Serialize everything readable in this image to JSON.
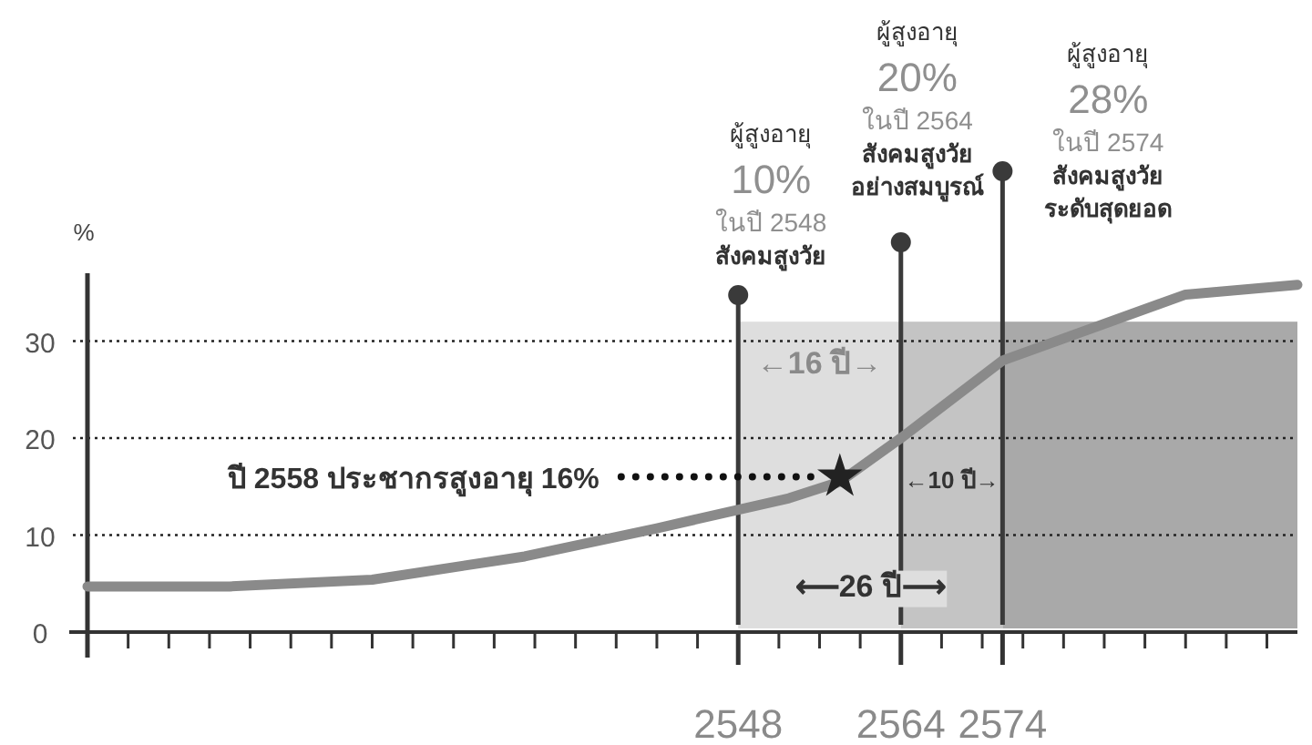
{
  "chart_data": {
    "type": "line",
    "ylabel": "%",
    "xlim": [
      2484,
      2603
    ],
    "ylim": [
      0,
      37
    ],
    "yticks": [
      0,
      10,
      20,
      30
    ],
    "grid": "y",
    "xticks": [
      {
        "value": 2484,
        "label": null
      },
      {
        "value": 2488,
        "label": null
      },
      {
        "value": 2492,
        "label": null
      },
      {
        "value": 2496,
        "label": null
      },
      {
        "value": 2500,
        "label": null
      },
      {
        "value": 2504,
        "label": null
      },
      {
        "value": 2508,
        "label": null
      },
      {
        "value": 2512,
        "label": null
      },
      {
        "value": 2516,
        "label": null
      },
      {
        "value": 2520,
        "label": null
      },
      {
        "value": 2524,
        "label": null
      },
      {
        "value": 2528,
        "label": null
      },
      {
        "value": 2532,
        "label": null
      },
      {
        "value": 2536,
        "label": null
      },
      {
        "value": 2540,
        "label": null
      },
      {
        "value": 2544,
        "label": null
      },
      2548,
      {
        "value": 2552,
        "label": null
      },
      {
        "value": 2556,
        "label": null
      },
      {
        "value": 2560,
        "label": null
      },
      2564,
      {
        "value": 2568,
        "label": null
      },
      {
        "value": 2572,
        "label": null
      },
      2574,
      {
        "value": 2576,
        "label": null
      },
      {
        "value": 2580,
        "label": null
      },
      {
        "value": 2584,
        "label": null
      },
      {
        "value": 2588,
        "label": null
      },
      {
        "value": 2592,
        "label": null
      },
      {
        "value": 2596,
        "label": null
      },
      {
        "value": 2600,
        "label": null
      }
    ],
    "series": [
      {
        "type": "line",
        "color": "#8a8a8a",
        "x": [
          2484,
          2498,
          2512,
          2527,
          2540,
          2553,
          2558,
          2564,
          2574,
          2592,
          2603
        ],
        "values": [
          4.7,
          4.7,
          5.4,
          7.8,
          10.7,
          13.8,
          15.5,
          20,
          28,
          34.8,
          35.8
        ]
      },
      {
        "type": "scatter",
        "color": "#222222",
        "marker": "star",
        "x": [
          2558
        ],
        "values": [
          16
        ]
      }
    ],
    "bands": [
      {
        "axis": "x",
        "from": 2548,
        "to": 2564,
        "color": "#dedede"
      },
      {
        "axis": "x",
        "from": 2564,
        "to": 2574,
        "color": "#c4c4c4"
      },
      {
        "axis": "x",
        "from": 2574,
        "to": 2603,
        "color": "#a9a9a9"
      }
    ],
    "ref_lines": [
      {
        "axis": "x",
        "value": 2548,
        "color": "#3a3a3a",
        "label": "ผู้สูงอายุ\n10%\nในปี 2548\nสังคมสูงวัย"
      },
      {
        "axis": "x",
        "value": 2564,
        "color": "#3a3a3a",
        "label": "ผู้สูงอายุ\n20%\nในปี 2564\nสังคมสูงวัย\nอย่างสมบูรณ์"
      },
      {
        "axis": "x",
        "value": 2574,
        "color": "#3a3a3a",
        "label": "ผู้สูงอายุ\n28%\nในปี 2574\nสังคมสูงวัย\nระดับสุดยอด"
      }
    ],
    "annotations": [
      "ปี 2558 ประชากรสูงอายุ 16%",
      "←16 ปี→",
      "←10 ปี→",
      "⟵26 ปี⟶"
    ]
  }
}
